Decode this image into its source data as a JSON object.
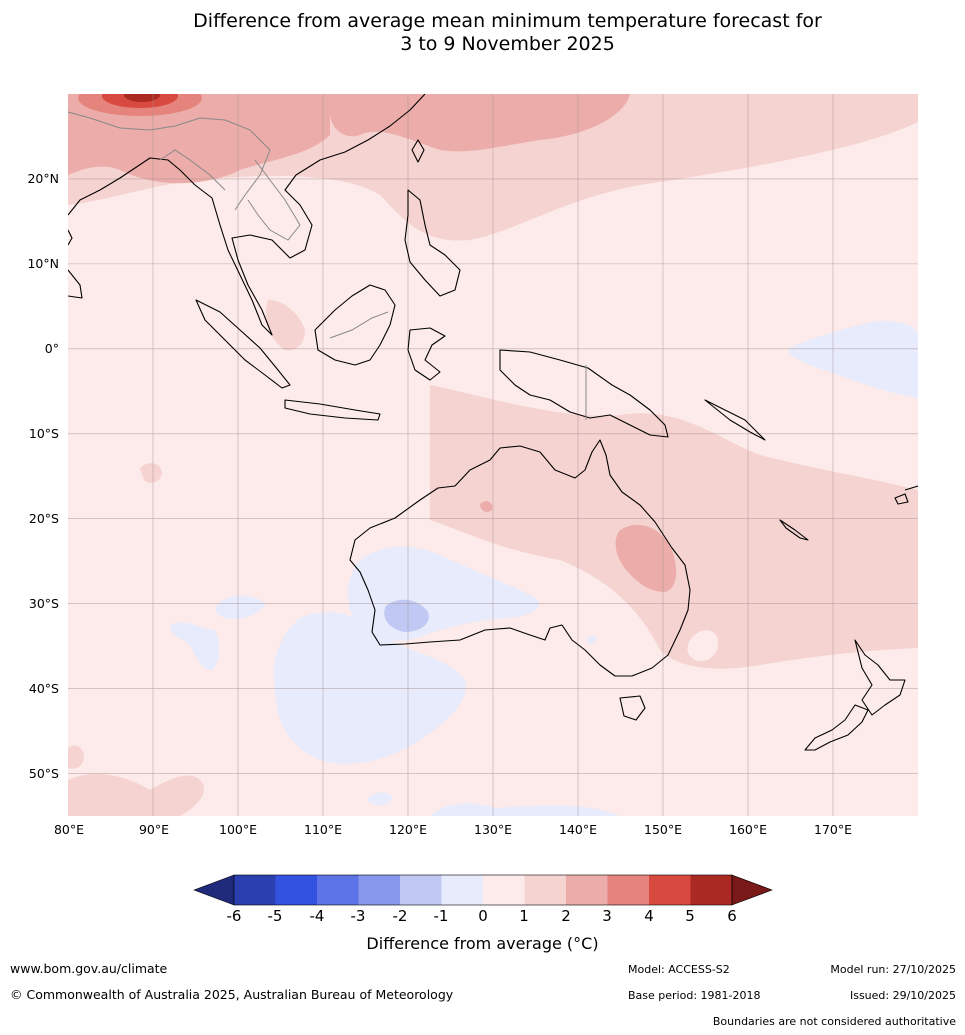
{
  "title": {
    "line1": "Difference from average mean minimum temperature forecast for",
    "line2": "3 to 9 November 2025"
  },
  "map": {
    "lon_range": [
      80,
      180
    ],
    "lat_range": [
      -55,
      30
    ],
    "lat_labels": [
      "20°N",
      "10°N",
      "0°",
      "10°S",
      "20°S",
      "30°S",
      "40°S",
      "50°S"
    ],
    "lon_labels": [
      "80°E",
      "90°E",
      "100°E",
      "110°E",
      "120°E",
      "130°E",
      "140°E",
      "150°E",
      "160°E",
      "170°E"
    ]
  },
  "colorbar": {
    "ticks": [
      "-6",
      "-5",
      "-4",
      "-3",
      "-2",
      "-1",
      "0",
      "1",
      "2",
      "3",
      "4",
      "5",
      "6"
    ],
    "colors": [
      "#1f2b7a",
      "#2b40b0",
      "#3352e0",
      "#5c74e5",
      "#8797ec",
      "#c0c8f4",
      "#e7ebfb",
      "#fcebea",
      "#f5d3d1",
      "#ecadaa",
      "#e5847c",
      "#d84a40",
      "#aa2922",
      "#7a1a18"
    ],
    "label": "Difference from average ($^\\circ$C)",
    "label_display": "Difference from average (°C)"
  },
  "footer": {
    "url": "www.bom.gov.au/climate",
    "copyright": "© Commonwealth of Australia 2025, Australian Bureau of Meteorology",
    "model": "Model: ACCESS-S2",
    "base_period": "Base period: 1981-2018",
    "model_run": "Model run: 27/10/2025",
    "issued": "Issued: 29/10/2025",
    "disclaimer": "Boundaries are not considered authoritative"
  }
}
